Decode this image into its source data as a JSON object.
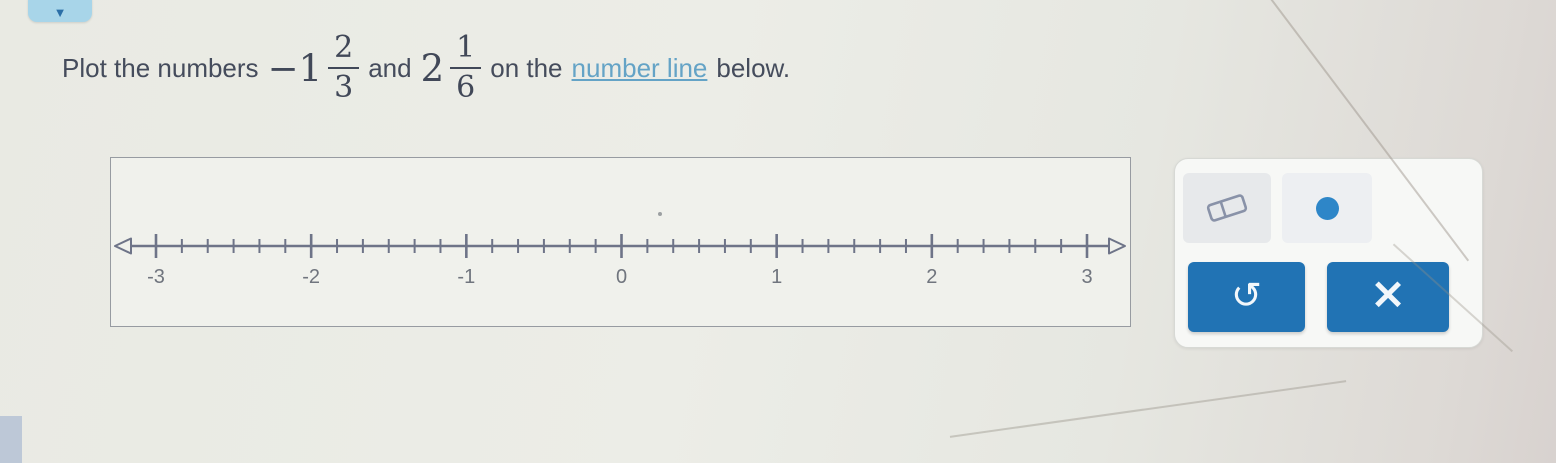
{
  "colors": {
    "accent_blue": "#2173b4",
    "point_blue": "#2e86c8",
    "tab_blue": "#a8d5e9",
    "link_blue": "#64a3c6",
    "line_gray": "#6e7488",
    "tick_label_gray": "#70757e",
    "text_dark": "#454c5c",
    "eraser_stroke": "#8992a8"
  },
  "collapse_tab": {
    "chevron_glyph": "▼"
  },
  "prompt": {
    "prefix": "Plot the numbers",
    "number1": {
      "whole": "−1",
      "numerator": "2",
      "denominator": "3"
    },
    "conjunction": "and",
    "number2": {
      "whole": "2",
      "numerator": "1",
      "denominator": "6"
    },
    "middle": "on the",
    "link": "number line",
    "suffix": "below."
  },
  "number_line": {
    "min": -3,
    "max": 3,
    "minor_divisions_per_unit": 6,
    "tick_labels": [
      "-3",
      "-2",
      "-1",
      "0",
      "1",
      "2",
      "3"
    ],
    "plotted_points": []
  },
  "tool_panel": {
    "tools": [
      {
        "id": "eraser",
        "name": "eraser tool"
      },
      {
        "id": "point",
        "name": "point tool"
      }
    ],
    "undo_glyph": "↺",
    "close_glyph": "×"
  }
}
